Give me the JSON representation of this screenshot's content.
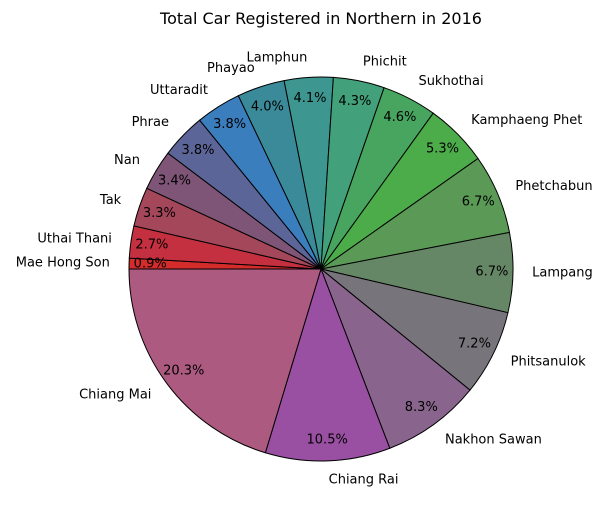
{
  "chart_data": {
    "type": "pie",
    "title": "Total Car Registered in Northern in 2016",
    "start_angle_deg": 180,
    "direction": "clockwise",
    "slices": [
      {
        "label": "Mae Hong Son",
        "pct": "0.9%",
        "value": 0.9,
        "color": "#d42b2b"
      },
      {
        "label": "Uthai Thani",
        "pct": "2.7%",
        "value": 2.7,
        "color": "#c53040"
      },
      {
        "label": "Tak",
        "pct": "3.3%",
        "value": 3.3,
        "color": "#a5475a"
      },
      {
        "label": "Nan",
        "pct": "3.4%",
        "value": 3.4,
        "color": "#7e5577"
      },
      {
        "label": "Phrae",
        "pct": "3.8%",
        "value": 3.8,
        "color": "#5c6597"
      },
      {
        "label": "Uttaradit",
        "pct": "3.8%",
        "value": 3.8,
        "color": "#3a7ebe"
      },
      {
        "label": "Phayao",
        "pct": "4.0%",
        "value": 4.0,
        "color": "#3b8a99"
      },
      {
        "label": "Lamphun",
        "pct": "4.1%",
        "value": 4.1,
        "color": "#3d9690"
      },
      {
        "label": "Phichit",
        "pct": "4.3%",
        "value": 4.3,
        "color": "#42a07a"
      },
      {
        "label": "Sukhothai",
        "pct": "4.6%",
        "value": 4.6,
        "color": "#47a55f"
      },
      {
        "label": "Kamphaeng Phet",
        "pct": "5.3%",
        "value": 5.3,
        "color": "#4dac4a"
      },
      {
        "label": "Phetchabun",
        "pct": "6.7%",
        "value": 6.7,
        "color": "#5b9a56"
      },
      {
        "label": "Lampang",
        "pct": "6.7%",
        "value": 6.7,
        "color": "#668766"
      },
      {
        "label": "Phitsanulok",
        "pct": "7.2%",
        "value": 7.2,
        "color": "#78747b"
      },
      {
        "label": "Nakhon Sawan",
        "pct": "8.3%",
        "value": 8.3,
        "color": "#89658d"
      },
      {
        "label": "Chiang Rai",
        "pct": "10.5%",
        "value": 10.5,
        "color": "#994fa2"
      },
      {
        "label": "Chiang Mai",
        "pct": "20.3%",
        "value": 20.3,
        "color": "#ad5a80"
      }
    ]
  }
}
